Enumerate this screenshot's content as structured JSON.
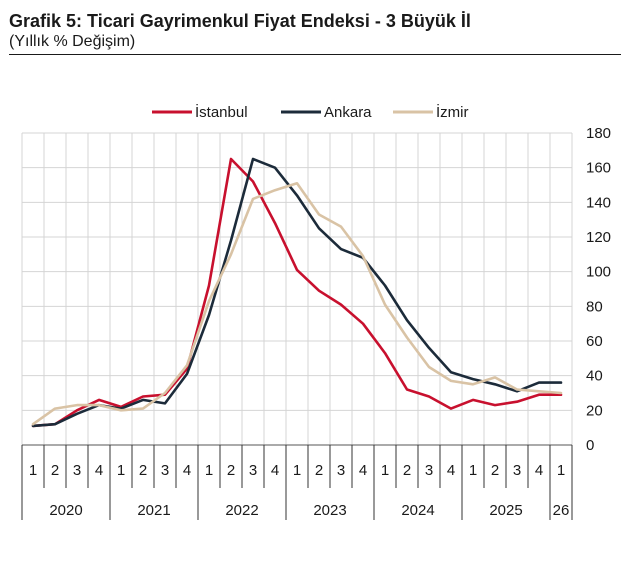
{
  "header": {
    "title": "Grafik 5: Ticari Gayrimenkul Fiyat Endeksi - 3 Büyük İl",
    "subtitle": "(Yıllık % Değişim)"
  },
  "chart_data": {
    "type": "line",
    "title": "Grafik 5: Ticari Gayrimenkul Fiyat Endeksi - 3 Büyük İl",
    "subtitle": "(Yıllık % Değişim)",
    "xlabel": "",
    "ylabel": "",
    "x": [
      "2020-Q1",
      "2020-Q2",
      "2020-Q3",
      "2020-Q4",
      "2021-Q1",
      "2021-Q2",
      "2021-Q3",
      "2021-Q4",
      "2022-Q1",
      "2022-Q2",
      "2022-Q3",
      "2022-Q4",
      "2023-Q1",
      "2023-Q2",
      "2023-Q3",
      "2023-Q4",
      "2024-Q1",
      "2024-Q2",
      "2024-Q3",
      "2024-Q4",
      "2025-Q1",
      "2025-Q2",
      "2025-Q3",
      "2025-Q4",
      "2026-Q1"
    ],
    "quarter_labels": [
      "1",
      "2",
      "3",
      "4",
      "1",
      "2",
      "3",
      "4",
      "1",
      "2",
      "3",
      "4",
      "1",
      "2",
      "3",
      "4",
      "1",
      "2",
      "3",
      "4",
      "1",
      "2",
      "3",
      "4",
      "1"
    ],
    "year_labels": [
      "2020",
      "2021",
      "2022",
      "2023",
      "2024",
      "2025",
      "26"
    ],
    "y_ticks": [
      "0",
      "20",
      "40",
      "60",
      "80",
      "100",
      "120",
      "140",
      "160",
      "180"
    ],
    "ylim": [
      0,
      180
    ],
    "y_axis_position": "right",
    "grid": true,
    "legend_position": "top",
    "series": [
      {
        "name": "İstanbul",
        "color": "#c8102e",
        "values": [
          11,
          12,
          20,
          26,
          22,
          28,
          29,
          44,
          92,
          165,
          152,
          128,
          101,
          89,
          81,
          70,
          53,
          32,
          28,
          21,
          26,
          23,
          25,
          29,
          29
        ]
      },
      {
        "name": "Ankara",
        "color": "#1c2b3a",
        "values": [
          11,
          12,
          18,
          23,
          21,
          26,
          24,
          41,
          75,
          118,
          165,
          160,
          144,
          125,
          113,
          108,
          92,
          72,
          56,
          42,
          38,
          35,
          31,
          36,
          36
        ]
      },
      {
        "name": "İzmir",
        "color": "#d9c3a5",
        "values": [
          12,
          21,
          23,
          23,
          20,
          21,
          30,
          46,
          83,
          110,
          142,
          147,
          151,
          133,
          126,
          109,
          81,
          62,
          45,
          37,
          35,
          39,
          32,
          31,
          30
        ]
      }
    ]
  }
}
